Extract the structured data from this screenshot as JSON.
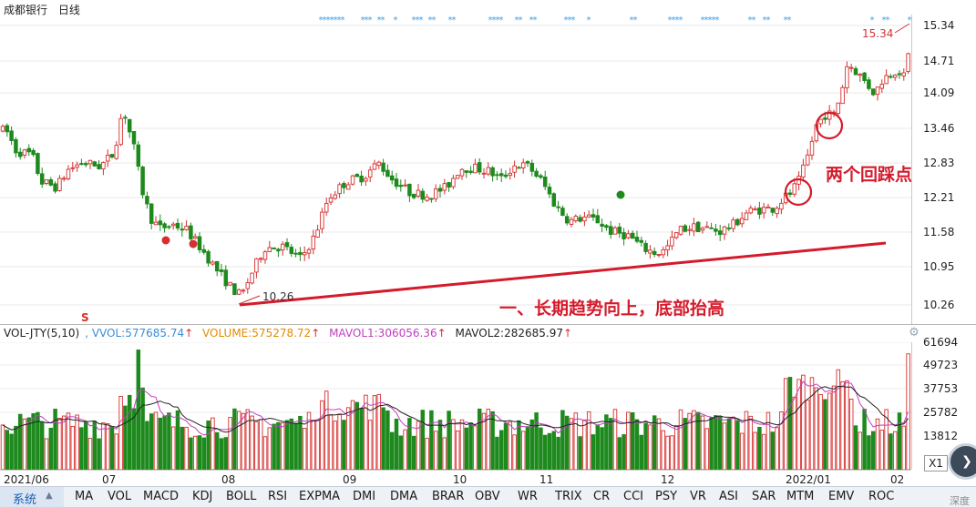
{
  "stock": {
    "name": "成都银行",
    "period": "日线"
  },
  "price_axis": {
    "ticks": [
      "15.34",
      "14.71",
      "14.09",
      "13.46",
      "12.83",
      "12.21",
      "11.58",
      "10.95",
      "10.26"
    ]
  },
  "price_annotations": {
    "high_label": "15.34",
    "low_label": "10.26",
    "s_marker": "S",
    "callout_pullbacks": "两个回踩点",
    "callout_trend": "一、长期趋势向上，底部抬高"
  },
  "volume_header": {
    "indicator": "VOL-JTY(5,10)",
    "vvol": ", VVOL:577685.74",
    "volume": "VOLUME:575278.72",
    "mavol1": "MAVOL1:306056.36",
    "mavol2": "MAVOL2:282685.97",
    "arrow": "↑"
  },
  "volume_axis": {
    "ticks": [
      "61694",
      "49723",
      "37753",
      "25782",
      "13812"
    ]
  },
  "date_axis": {
    "labels": [
      "2021/06",
      "07",
      "08",
      "09",
      "10",
      "11",
      "12",
      "2022/01",
      "02"
    ]
  },
  "indicator_tabs": {
    "system": "系统",
    "system_arrow": "▲",
    "items": [
      "MA",
      "VOL",
      "MACD",
      "KDJ",
      "BOLL",
      "RSI",
      "EXPMA",
      "DMI",
      "DMA",
      "BRAR",
      "OBV",
      "WR",
      "TRIX",
      "CR",
      "CCI",
      "PSY",
      "VR",
      "ASI",
      "SAR",
      "MTM",
      "EMV",
      "ROC"
    ]
  },
  "controls": {
    "x1": "X1",
    "float_widget_label": "深度"
  },
  "colors": {
    "up": "#d62f2f",
    "down": "#1e8a1e",
    "trendline": "#d41b2c",
    "star": "#3b9ee8",
    "mavol1": "#c040c0",
    "mavol2": "#222222"
  },
  "chart_data": {
    "type": "candlestick+volume",
    "price_ylim": [
      10.0,
      15.5
    ],
    "dates": [
      "2021/06",
      "07",
      "08",
      "09",
      "10",
      "11",
      "12",
      "2022/01",
      "02"
    ],
    "annotated_low": 10.26,
    "annotated_high": 15.34,
    "volume_ylim": [
      0,
      66000
    ]
  }
}
